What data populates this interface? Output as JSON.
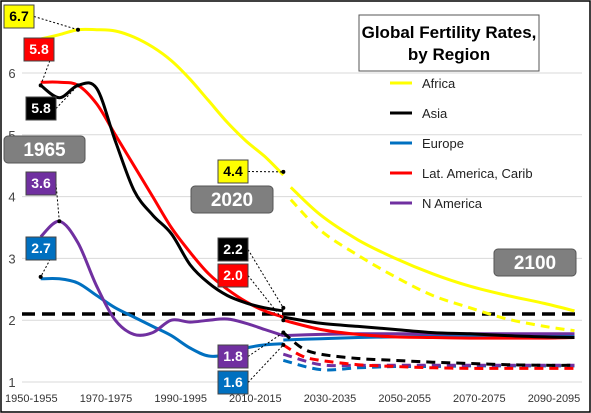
{
  "chart_data": {
    "type": "line",
    "title_line1": "Global Fertility Rates,",
    "title_line2": "by Region",
    "y_ticks": [
      "1",
      "2",
      "3",
      "4",
      "5",
      "6"
    ],
    "ylim": [
      1,
      7.1
    ],
    "x_ticks": [
      "1950-1955",
      "1970-1975",
      "1990-1995",
      "2010-2015",
      "2030-2035",
      "2050-2055",
      "2070-2075",
      "2090-2095"
    ],
    "grid": true,
    "legend_position": "right",
    "replacement_line": 2.1,
    "period_labels": {
      "start": "1965",
      "mid": "2020",
      "end": "2100"
    },
    "series": [
      {
        "name": "Africa",
        "color": "#FFFF00",
        "historical": [
          [
            1955,
            6.55
          ],
          [
            1960,
            6.62
          ],
          [
            1965,
            6.7
          ],
          [
            1970,
            6.7
          ],
          [
            1975,
            6.68
          ],
          [
            1980,
            6.58
          ],
          [
            1985,
            6.42
          ],
          [
            1990,
            6.2
          ],
          [
            1995,
            5.9
          ],
          [
            2000,
            5.55
          ],
          [
            2005,
            5.2
          ],
          [
            2010,
            4.9
          ],
          [
            2015,
            4.65
          ],
          [
            2020,
            4.35
          ]
        ],
        "projection_high": [
          [
            2022,
            4.15
          ],
          [
            2030,
            3.7
          ],
          [
            2040,
            3.3
          ],
          [
            2050,
            3.0
          ],
          [
            2060,
            2.75
          ],
          [
            2070,
            2.55
          ],
          [
            2080,
            2.4
          ],
          [
            2090,
            2.27
          ],
          [
            2098,
            2.15
          ]
        ],
        "projection_low": [
          [
            2022,
            3.95
          ],
          [
            2030,
            3.45
          ],
          [
            2040,
            3.05
          ],
          [
            2050,
            2.7
          ],
          [
            2060,
            2.4
          ],
          [
            2070,
            2.2
          ],
          [
            2080,
            2.02
          ],
          [
            2090,
            1.9
          ],
          [
            2098,
            1.83
          ]
        ],
        "labels": [
          {
            "text": "6.7",
            "year": 1965,
            "value": 6.7
          },
          {
            "text": "4.4",
            "year": 2020,
            "value": 4.4
          }
        ]
      },
      {
        "name": "Asia",
        "color": "#000000",
        "historical": [
          [
            1955,
            5.8
          ],
          [
            1960,
            5.6
          ],
          [
            1965,
            5.8
          ],
          [
            1970,
            5.75
          ],
          [
            1975,
            4.9
          ],
          [
            1980,
            4.1
          ],
          [
            1985,
            3.7
          ],
          [
            1990,
            3.4
          ],
          [
            1995,
            2.9
          ],
          [
            2000,
            2.6
          ],
          [
            2005,
            2.4
          ],
          [
            2010,
            2.28
          ],
          [
            2015,
            2.2
          ],
          [
            2020,
            2.15
          ]
        ],
        "projection_high": [
          [
            2020,
            2.05
          ],
          [
            2030,
            1.95
          ],
          [
            2040,
            1.9
          ],
          [
            2050,
            1.85
          ],
          [
            2060,
            1.8
          ],
          [
            2070,
            1.78
          ],
          [
            2080,
            1.75
          ],
          [
            2090,
            1.73
          ],
          [
            2098,
            1.72
          ]
        ],
        "projection_low": [
          [
            2020,
            1.8
          ],
          [
            2025,
            1.55
          ],
          [
            2030,
            1.45
          ],
          [
            2040,
            1.38
          ],
          [
            2050,
            1.35
          ],
          [
            2060,
            1.32
          ],
          [
            2070,
            1.3
          ],
          [
            2080,
            1.28
          ],
          [
            2090,
            1.27
          ],
          [
            2098,
            1.27
          ]
        ],
        "labels": [
          {
            "text": "5.8",
            "year": 1965,
            "value": 5.8
          },
          {
            "text": "2.2",
            "year": 2020,
            "value": 2.2
          }
        ]
      },
      {
        "name": "Europe",
        "color": "#0070C0",
        "historical": [
          [
            1955,
            2.67
          ],
          [
            1960,
            2.67
          ],
          [
            1965,
            2.6
          ],
          [
            1970,
            2.4
          ],
          [
            1975,
            2.2
          ],
          [
            1980,
            2.05
          ],
          [
            1985,
            1.9
          ],
          [
            1990,
            1.75
          ],
          [
            1995,
            1.55
          ],
          [
            2000,
            1.42
          ],
          [
            2005,
            1.45
          ],
          [
            2010,
            1.55
          ],
          [
            2015,
            1.6
          ],
          [
            2020,
            1.62
          ]
        ],
        "projection_high": [
          [
            2020,
            1.68
          ],
          [
            2030,
            1.7
          ],
          [
            2040,
            1.72
          ],
          [
            2050,
            1.73
          ],
          [
            2060,
            1.74
          ],
          [
            2070,
            1.75
          ],
          [
            2080,
            1.75
          ],
          [
            2090,
            1.76
          ],
          [
            2098,
            1.76
          ]
        ],
        "projection_low": [
          [
            2020,
            1.35
          ],
          [
            2030,
            1.2
          ],
          [
            2040,
            1.23
          ],
          [
            2050,
            1.25
          ],
          [
            2060,
            1.25
          ],
          [
            2070,
            1.26
          ],
          [
            2080,
            1.26
          ],
          [
            2090,
            1.26
          ],
          [
            2098,
            1.26
          ]
        ],
        "labels": [
          {
            "text": "2.7",
            "year": 1955,
            "value": 2.7
          },
          {
            "text": "1.6",
            "year": 2020,
            "value": 1.6
          }
        ]
      },
      {
        "name": "Lat. America, Carib",
        "color": "#FF0000",
        "historical": [
          [
            1955,
            5.85
          ],
          [
            1960,
            5.85
          ],
          [
            1965,
            5.8
          ],
          [
            1970,
            5.5
          ],
          [
            1975,
            5.0
          ],
          [
            1980,
            4.5
          ],
          [
            1985,
            4.0
          ],
          [
            1990,
            3.5
          ],
          [
            1995,
            3.1
          ],
          [
            2000,
            2.75
          ],
          [
            2005,
            2.5
          ],
          [
            2010,
            2.3
          ],
          [
            2015,
            2.15
          ],
          [
            2020,
            2.05
          ]
        ],
        "projection_high": [
          [
            2020,
            2.0
          ],
          [
            2030,
            1.85
          ],
          [
            2040,
            1.77
          ],
          [
            2050,
            1.73
          ],
          [
            2060,
            1.72
          ],
          [
            2070,
            1.71
          ],
          [
            2080,
            1.71
          ],
          [
            2090,
            1.71
          ],
          [
            2098,
            1.72
          ]
        ],
        "projection_low": [
          [
            2020,
            1.6
          ],
          [
            2025,
            1.42
          ],
          [
            2030,
            1.35
          ],
          [
            2040,
            1.28
          ],
          [
            2050,
            1.25
          ],
          [
            2060,
            1.23
          ],
          [
            2070,
            1.22
          ],
          [
            2080,
            1.22
          ],
          [
            2090,
            1.22
          ],
          [
            2098,
            1.22
          ]
        ],
        "labels": [
          {
            "text": "5.8",
            "year": 1955,
            "value": 5.8
          },
          {
            "text": "2.0",
            "year": 2020,
            "value": 2.0
          }
        ]
      },
      {
        "name": "N America",
        "color": "#7030A0",
        "historical": [
          [
            1955,
            3.35
          ],
          [
            1960,
            3.6
          ],
          [
            1965,
            3.25
          ],
          [
            1970,
            2.55
          ],
          [
            1975,
            2.0
          ],
          [
            1980,
            1.77
          ],
          [
            1985,
            1.8
          ],
          [
            1990,
            2.0
          ],
          [
            1995,
            1.97
          ],
          [
            2000,
            2.0
          ],
          [
            2005,
            2.02
          ],
          [
            2010,
            1.95
          ],
          [
            2015,
            1.85
          ],
          [
            2020,
            1.75
          ]
        ],
        "projection_high": [
          [
            2020,
            1.75
          ],
          [
            2030,
            1.77
          ],
          [
            2040,
            1.78
          ],
          [
            2050,
            1.78
          ],
          [
            2060,
            1.78
          ],
          [
            2070,
            1.78
          ],
          [
            2080,
            1.78
          ],
          [
            2090,
            1.78
          ],
          [
            2098,
            1.78
          ]
        ],
        "projection_low": [
          [
            2020,
            1.45
          ],
          [
            2030,
            1.28
          ],
          [
            2040,
            1.27
          ],
          [
            2050,
            1.27
          ],
          [
            2060,
            1.27
          ],
          [
            2070,
            1.27
          ],
          [
            2080,
            1.27
          ],
          [
            2090,
            1.27
          ],
          [
            2098,
            1.27
          ]
        ],
        "labels": [
          {
            "text": "3.6",
            "year": 1960,
            "value": 3.6
          },
          {
            "text": "1.8",
            "year": 2020,
            "value": 1.8
          }
        ]
      }
    ]
  }
}
